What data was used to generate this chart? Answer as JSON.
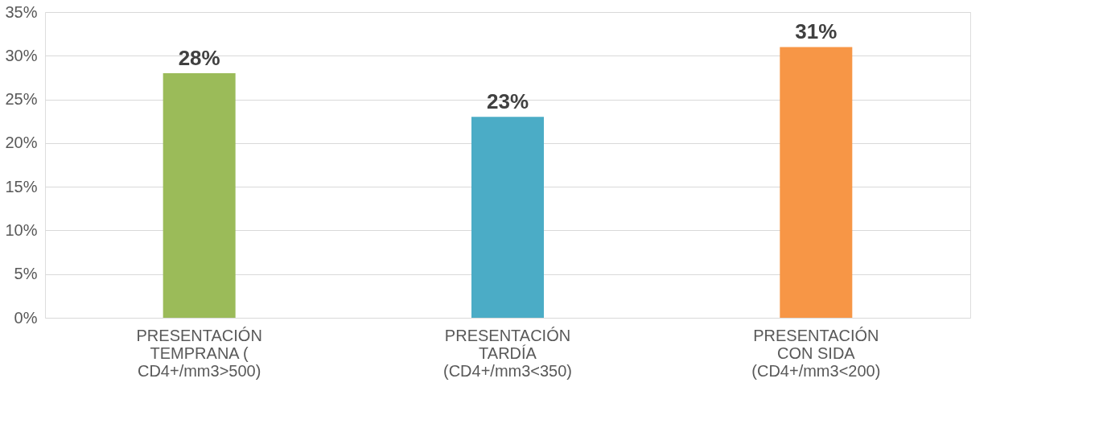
{
  "chart_data": {
    "type": "bar",
    "categories": [
      "PRESENTACIÓN\nTEMPRANA (\nCD4+/mm3>500)",
      "PRESENTACIÓN\nTARDÍA\n(CD4+/mm3<350)",
      "PRESENTACIÓN\nCON SIDA\n(CD4+/mm3<200)"
    ],
    "values": [
      28,
      23,
      31
    ],
    "colors": [
      "#9bbb59",
      "#4bacc6",
      "#f79646"
    ],
    "value_labels": [
      "28%",
      "23%",
      "31%"
    ],
    "ylim": [
      0,
      35
    ],
    "yticks": [
      {
        "value": 0,
        "label": "0%"
      },
      {
        "value": 5,
        "label": "5%"
      },
      {
        "value": 10,
        "label": "10%"
      },
      {
        "value": 15,
        "label": "15%"
      },
      {
        "value": 20,
        "label": "20%"
      },
      {
        "value": 25,
        "label": "25%"
      },
      {
        "value": 30,
        "label": "30%"
      },
      {
        "value": 35,
        "label": "35%"
      }
    ],
    "grid": "y"
  }
}
